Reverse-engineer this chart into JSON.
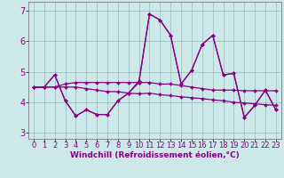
{
  "xlabel": "Windchill (Refroidissement éolien,°C)",
  "bg_color": "#cce8e8",
  "line_color": "#880088",
  "xlim": [
    -0.5,
    23.5
  ],
  "ylim": [
    2.8,
    7.3
  ],
  "xticks": [
    0,
    1,
    2,
    3,
    4,
    5,
    6,
    7,
    8,
    9,
    10,
    11,
    12,
    13,
    14,
    15,
    16,
    17,
    18,
    19,
    20,
    21,
    22,
    23
  ],
  "yticks": [
    3,
    4,
    5,
    6,
    7
  ],
  "line1_y": [
    4.5,
    4.5,
    4.5,
    4.6,
    4.65,
    4.65,
    4.65,
    4.65,
    4.65,
    4.65,
    4.65,
    4.65,
    4.6,
    4.6,
    4.55,
    4.5,
    4.45,
    4.4,
    4.4,
    4.4,
    4.38,
    4.38,
    4.38,
    4.38
  ],
  "line2_y": [
    4.5,
    4.5,
    4.9,
    4.05,
    3.55,
    3.75,
    3.6,
    3.6,
    4.05,
    4.3,
    4.65,
    6.9,
    6.7,
    6.2,
    4.6,
    5.05,
    5.9,
    6.2,
    4.9,
    4.95,
    3.5,
    3.9,
    4.4,
    3.75
  ],
  "line3_y": [
    4.5,
    4.5,
    4.9,
    4.05,
    3.55,
    3.75,
    3.6,
    3.6,
    4.05,
    4.3,
    4.7,
    6.9,
    6.7,
    6.2,
    4.6,
    5.05,
    5.9,
    6.2,
    4.9,
    4.95,
    3.5,
    3.9,
    4.4,
    3.75
  ],
  "line4_y": [
    4.5,
    4.5,
    4.5,
    4.5,
    4.5,
    4.45,
    4.4,
    4.35,
    4.35,
    4.3,
    4.28,
    4.3,
    4.25,
    4.22,
    4.18,
    4.15,
    4.12,
    4.08,
    4.05,
    4.0,
    3.98,
    3.95,
    3.92,
    3.9
  ],
  "grid_color": "#99bbbb",
  "xlabel_fontsize": 6.5,
  "tick_fontsize": 6
}
